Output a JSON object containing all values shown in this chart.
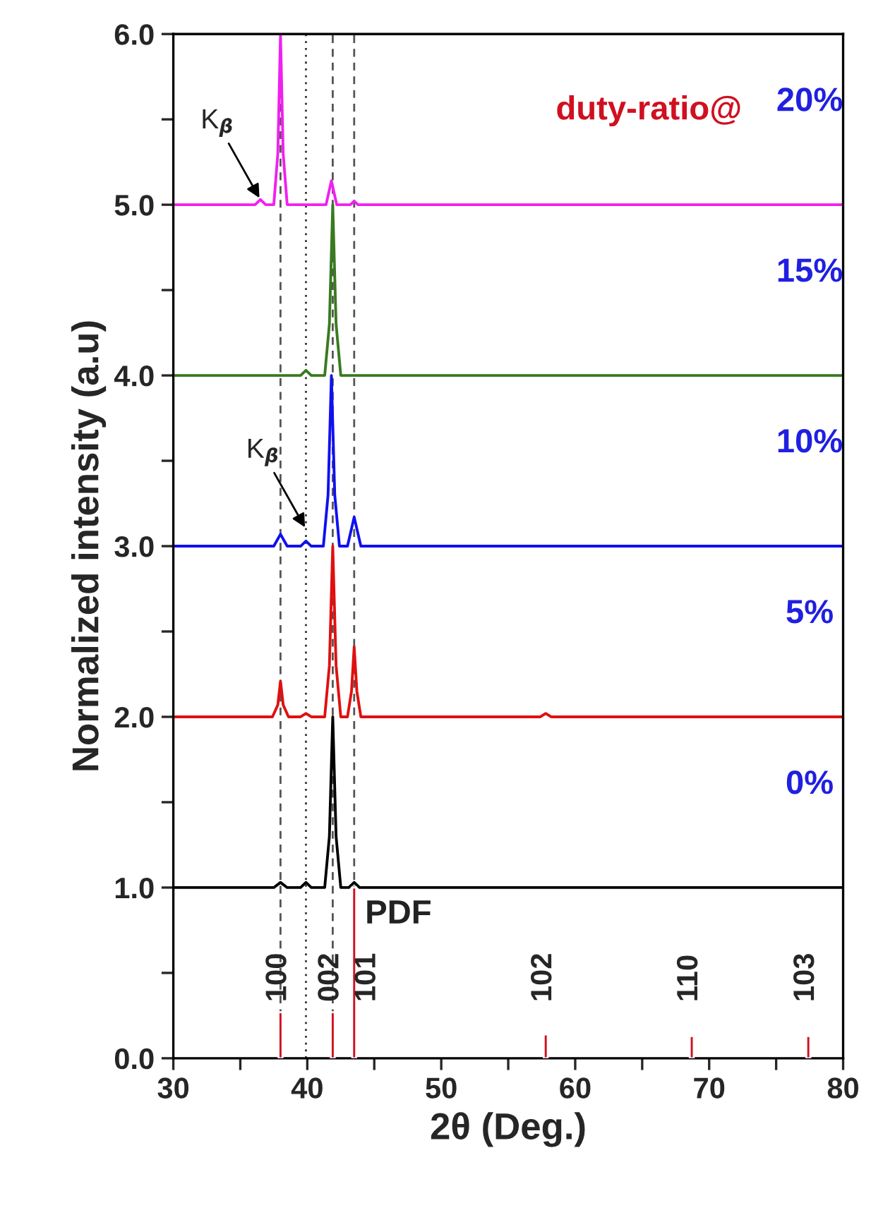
{
  "chart_data": {
    "type": "line",
    "xlabel": "2θ (Deg.)",
    "ylabel": "Normalized intensity (a.u)",
    "xlim": [
      30,
      80
    ],
    "xticks": [
      30,
      {
        "value": 35,
        "label": null
      },
      40,
      {
        "value": 45,
        "label": null
      },
      50,
      {
        "value": 55,
        "label": null
      },
      60,
      {
        "value": 65,
        "label": null
      },
      70,
      {
        "value": 75,
        "label": null
      },
      80
    ],
    "ylim": [
      0,
      6
    ],
    "yticks": [
      {
        "value": 0,
        "label": "0.0"
      },
      {
        "value": 0.5,
        "label": null
      },
      {
        "value": 1,
        "label": "1.0"
      },
      {
        "value": 1.5,
        "label": null
      },
      {
        "value": 2,
        "label": "2.0"
      },
      {
        "value": 2.5,
        "label": null
      },
      {
        "value": 3,
        "label": "3.0"
      },
      {
        "value": 3.5,
        "label": null
      },
      {
        "value": 4,
        "label": "4.0"
      },
      {
        "value": 4.5,
        "label": null
      },
      {
        "value": 5,
        "label": "5.0"
      },
      {
        "value": 5.5,
        "label": null
      },
      {
        "value": 6,
        "label": "6.0"
      }
    ],
    "grid": false,
    "legend": false,
    "series": [
      {
        "type": "bar",
        "color": "#d01020",
        "x": [
          38.0,
          41.9,
          43.5,
          57.8,
          68.7,
          77.4
        ],
        "values": [
          0.27,
          0.27,
          1.0,
          0.14,
          0.13,
          0.13
        ]
      },
      {
        "color": "#000000",
        "x": [
          30,
          37.5,
          38.0,
          38.5,
          39.5,
          39.9,
          40.3,
          41.3,
          41.65,
          41.9,
          42.15,
          42.5,
          43.1,
          43.5,
          43.9,
          80
        ],
        "values": [
          1.0,
          1.0,
          1.03,
          1.0,
          1.0,
          1.03,
          1.0,
          1.0,
          1.3,
          2.0,
          1.3,
          1.0,
          1.0,
          1.03,
          1.0,
          1.0
        ]
      },
      {
        "color": "#e01010",
        "x": [
          30,
          37.4,
          37.8,
          38.0,
          38.2,
          38.6,
          39.5,
          39.9,
          40.3,
          41.3,
          41.65,
          41.9,
          42.15,
          42.5,
          43.0,
          43.3,
          43.5,
          43.7,
          44.0,
          57.4,
          57.8,
          58.2,
          80
        ],
        "values": [
          2.0,
          2.0,
          2.07,
          2.21,
          2.07,
          2.0,
          2.0,
          2.02,
          2.0,
          2.0,
          2.3,
          3.0,
          2.3,
          2.0,
          2.0,
          2.15,
          2.41,
          2.15,
          2.0,
          2.0,
          2.02,
          2.0,
          2.0
        ]
      },
      {
        "color": "#1010f0",
        "x": [
          30,
          37.5,
          38.0,
          38.5,
          39.5,
          39.9,
          40.3,
          41.2,
          41.55,
          41.8,
          42.05,
          42.4,
          43.0,
          43.5,
          44.0,
          80
        ],
        "values": [
          3.0,
          3.0,
          3.07,
          3.0,
          3.0,
          3.03,
          3.0,
          3.0,
          3.3,
          4.0,
          3.3,
          3.0,
          3.0,
          3.17,
          3.0,
          3.0
        ]
      },
      {
        "color": "#3a7a20",
        "x": [
          30,
          39.5,
          39.9,
          40.3,
          41.3,
          41.65,
          41.9,
          42.15,
          42.5,
          80
        ],
        "values": [
          4.0,
          4.0,
          4.03,
          4.0,
          4.0,
          4.3,
          5.0,
          4.3,
          4.0,
          4.0
        ]
      },
      {
        "color": "#f020f0",
        "x": [
          30,
          36.1,
          36.5,
          36.9,
          37.5,
          37.8,
          38.0,
          38.2,
          38.5,
          41.4,
          41.8,
          42.2,
          43.2,
          43.5,
          43.8,
          80
        ],
        "values": [
          5.0,
          5.0,
          5.03,
          5.0,
          5.0,
          5.3,
          6.0,
          5.3,
          5.0,
          5.0,
          5.14,
          5.0,
          5.0,
          5.02,
          5.0,
          5.0
        ]
      }
    ],
    "ref_lines": [
      {
        "axis": "x",
        "value": 38.0,
        "color": "#555555",
        "line_style": "dashed"
      },
      {
        "axis": "x",
        "value": 41.9,
        "color": "#555555",
        "line_style": "dashed"
      },
      {
        "axis": "x",
        "value": 43.5,
        "color": "#555555",
        "line_style": "dashed"
      },
      {
        "axis": "x",
        "value": 39.9,
        "color": "#333333",
        "line_style": "dotted"
      }
    ],
    "annotations": [
      {
        "text": "K$_{β}$",
        "x": 36.5,
        "y": 5.03
      },
      {
        "text": "K$_{β}$",
        "x": 39.9,
        "y": 3.1
      },
      "duty-ratio@",
      "20%",
      "15%",
      "10%",
      "5%",
      "0%",
      "PDF",
      {
        "text": "100",
        "x": 38.0,
        "y": 0.27
      },
      {
        "text": "002",
        "x": 41.9,
        "y": 0.27
      },
      {
        "text": "101",
        "x": 43.5,
        "y": 1.0
      },
      {
        "text": "102",
        "x": 57.8,
        "y": 0.14
      },
      {
        "text": "110",
        "x": 68.7,
        "y": 0.13
      },
      {
        "text": "103",
        "x": 77.4,
        "y": 0.13
      }
    ]
  }
}
